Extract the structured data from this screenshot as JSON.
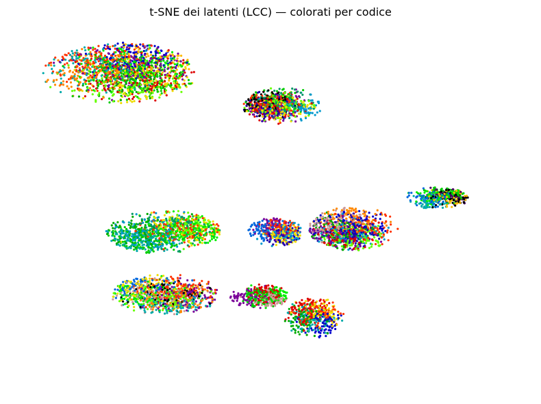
{
  "chart_data": {
    "type": "scatter",
    "title": "t-SNE dei latenti (LCC) — colorati per codice",
    "xlabel": "",
    "ylabel": "",
    "axes": "off",
    "grid": false,
    "legend": "none",
    "xlim": [
      -100,
      100
    ],
    "ylim": [
      -100,
      100
    ],
    "palette": [
      "#000000",
      "#4a0066",
      "#7a0099",
      "#2200aa",
      "#0000cc",
      "#0066dd",
      "#0099cc",
      "#00aaaa",
      "#009966",
      "#00aa00",
      "#00cc00",
      "#00ee00",
      "#66ff00",
      "#ccee00",
      "#eedd00",
      "#ffbb00",
      "#ff8800",
      "#ff3300",
      "#dd0000",
      "#cc9999"
    ],
    "clusters": [
      {
        "cx": -62,
        "cy": 74,
        "rx": 31,
        "ry": 17,
        "points": 1800,
        "colors": [
          9,
          4,
          2,
          17,
          11,
          18,
          14,
          12,
          7,
          15,
          16,
          10
        ],
        "note": "top-left cluster"
      },
      {
        "cx": 5,
        "cy": 56,
        "rx": 16,
        "ry": 10,
        "points": 900,
        "colors": [
          17,
          18,
          2,
          3,
          14,
          6,
          8,
          12,
          0,
          10
        ],
        "note": "top-center cluster"
      },
      {
        "cx": 68,
        "cy": 4,
        "rx": 13,
        "ry": 6,
        "points": 450,
        "colors": [
          1,
          0,
          5,
          11,
          10,
          15,
          7
        ],
        "note": "right-upper cluster"
      },
      {
        "cx": 34,
        "cy": -13,
        "rx": 18,
        "ry": 12,
        "points": 1100,
        "colors": [
          4,
          2,
          17,
          18,
          6,
          16,
          19,
          9,
          3,
          12
        ],
        "note": "right-middle cluster"
      },
      {
        "cx": 2,
        "cy": -15,
        "rx": 11,
        "ry": 8,
        "points": 500,
        "colors": [
          2,
          5,
          17,
          6,
          14,
          3
        ],
        "note": "small center cluster"
      },
      {
        "cx": -44,
        "cy": -15,
        "rx": 23,
        "ry": 12,
        "points": 1200,
        "colors": [
          17,
          10,
          6,
          14,
          11,
          7,
          9,
          12,
          8
        ],
        "note": "lower-left cluster"
      },
      {
        "cx": -43,
        "cy": -50,
        "rx": 22,
        "ry": 11,
        "points": 1100,
        "colors": [
          19,
          2,
          17,
          16,
          7,
          5,
          12,
          11,
          0,
          14
        ],
        "note": "bottom-left cluster"
      },
      {
        "cx": -5,
        "cy": -51,
        "rx": 12,
        "ry": 7,
        "points": 450,
        "colors": [
          11,
          2,
          18,
          19,
          10
        ],
        "note": "bottom-middle cluster"
      },
      {
        "cx": 18,
        "cy": -63,
        "rx": 12,
        "ry": 11,
        "points": 550,
        "colors": [
          4,
          7,
          17,
          14,
          9,
          18
        ],
        "note": "bottom-right cluster"
      }
    ]
  }
}
